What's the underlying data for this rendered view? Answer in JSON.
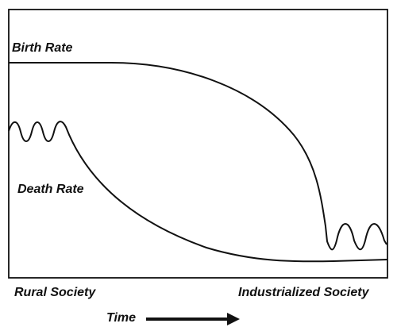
{
  "diagram": {
    "curves": [
      {
        "label": "Birth Rate",
        "color": "#111111"
      },
      {
        "label": "Death Rate",
        "color": "#111111"
      }
    ],
    "x_start_label": "Rural Society",
    "x_end_label": "Industrialized Society",
    "axis_label": "Time",
    "arrow_icon": "right-arrow-icon"
  }
}
